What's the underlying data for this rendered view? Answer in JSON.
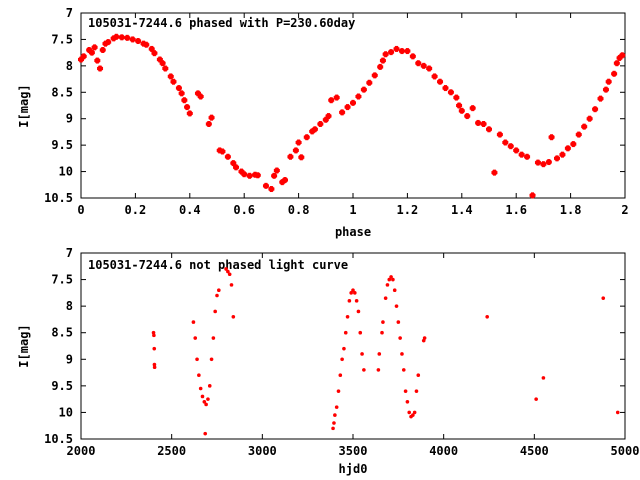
{
  "chart_data": [
    {
      "type": "scatter",
      "title": "105031-7244.6 phased with P=230.60day",
      "xlabel": "phase",
      "ylabel": "I[mag]",
      "xlim": [
        0,
        2
      ],
      "ylim": [
        10.5,
        7
      ],
      "y_inverted": true,
      "xticks": [
        "0",
        "0.2",
        "0.4",
        "0.6",
        "0.8",
        "1",
        "1.2",
        "1.4",
        "1.6",
        "1.8",
        "2"
      ],
      "yticks": [
        "7",
        "7.5",
        "8",
        "8.5",
        "9",
        "9.5",
        "10",
        "10.5"
      ],
      "grid": false,
      "marker": "cross",
      "color": "#ff0000",
      "series": [
        {
          "points": [
            [
              0.0,
              7.88
            ],
            [
              0.01,
              7.82
            ],
            [
              0.03,
              7.7
            ],
            [
              0.04,
              7.75
            ],
            [
              0.05,
              7.65
            ],
            [
              0.06,
              7.9
            ],
            [
              0.07,
              8.05
            ],
            [
              0.08,
              7.7
            ],
            [
              0.09,
              7.58
            ],
            [
              0.1,
              7.55
            ],
            [
              0.12,
              7.48
            ],
            [
              0.13,
              7.45
            ],
            [
              0.15,
              7.46
            ],
            [
              0.17,
              7.47
            ],
            [
              0.19,
              7.5
            ],
            [
              0.21,
              7.53
            ],
            [
              0.23,
              7.58
            ],
            [
              0.24,
              7.6
            ],
            [
              0.26,
              7.68
            ],
            [
              0.27,
              7.76
            ],
            [
              0.29,
              7.88
            ],
            [
              0.3,
              7.95
            ],
            [
              0.31,
              8.05
            ],
            [
              0.33,
              8.2
            ],
            [
              0.34,
              8.3
            ],
            [
              0.36,
              8.42
            ],
            [
              0.37,
              8.52
            ],
            [
              0.38,
              8.65
            ],
            [
              0.39,
              8.78
            ],
            [
              0.4,
              8.9
            ],
            [
              0.43,
              8.52
            ],
            [
              0.44,
              8.58
            ],
            [
              0.47,
              9.1
            ],
            [
              0.48,
              8.98
            ],
            [
              0.51,
              9.6
            ],
            [
              0.52,
              9.62
            ],
            [
              0.54,
              9.72
            ],
            [
              0.56,
              9.84
            ],
            [
              0.57,
              9.92
            ],
            [
              0.59,
              10.0
            ],
            [
              0.6,
              10.05
            ],
            [
              0.62,
              10.08
            ],
            [
              0.64,
              10.06
            ],
            [
              0.65,
              10.07
            ],
            [
              0.68,
              10.27
            ],
            [
              0.7,
              10.33
            ],
            [
              0.71,
              10.08
            ],
            [
              0.72,
              9.98
            ],
            [
              0.74,
              10.2
            ],
            [
              0.75,
              10.16
            ],
            [
              0.77,
              9.72
            ],
            [
              0.79,
              9.6
            ],
            [
              0.8,
              9.45
            ],
            [
              0.81,
              9.73
            ],
            [
              0.83,
              9.35
            ],
            [
              0.85,
              9.24
            ],
            [
              0.86,
              9.2
            ],
            [
              0.88,
              9.1
            ],
            [
              0.9,
              9.02
            ],
            [
              0.91,
              8.95
            ],
            [
              0.92,
              8.65
            ],
            [
              0.94,
              8.6
            ],
            [
              0.96,
              8.88
            ],
            [
              0.98,
              8.78
            ],
            [
              1.0,
              8.7
            ],
            [
              1.02,
              8.58
            ],
            [
              1.04,
              8.45
            ],
            [
              1.06,
              8.32
            ],
            [
              1.08,
              8.18
            ],
            [
              1.1,
              8.02
            ],
            [
              1.11,
              7.9
            ],
            [
              1.12,
              7.78
            ],
            [
              1.14,
              7.74
            ],
            [
              1.16,
              7.68
            ],
            [
              1.18,
              7.72
            ],
            [
              1.2,
              7.72
            ],
            [
              1.22,
              7.82
            ],
            [
              1.24,
              7.95
            ],
            [
              1.26,
              8.0
            ],
            [
              1.28,
              8.05
            ],
            [
              1.3,
              8.2
            ],
            [
              1.32,
              8.3
            ],
            [
              1.34,
              8.42
            ],
            [
              1.36,
              8.5
            ],
            [
              1.38,
              8.6
            ],
            [
              1.39,
              8.75
            ],
            [
              1.4,
              8.85
            ],
            [
              1.42,
              8.95
            ],
            [
              1.44,
              8.8
            ],
            [
              1.46,
              9.08
            ],
            [
              1.48,
              9.1
            ],
            [
              1.5,
              9.2
            ],
            [
              1.52,
              10.02
            ],
            [
              1.54,
              9.3
            ],
            [
              1.56,
              9.45
            ],
            [
              1.58,
              9.52
            ],
            [
              1.6,
              9.6
            ],
            [
              1.62,
              9.68
            ],
            [
              1.64,
              9.72
            ],
            [
              1.66,
              10.45
            ],
            [
              1.68,
              9.83
            ],
            [
              1.7,
              9.86
            ],
            [
              1.72,
              9.82
            ],
            [
              1.73,
              9.35
            ],
            [
              1.75,
              9.75
            ],
            [
              1.77,
              9.68
            ],
            [
              1.79,
              9.56
            ],
            [
              1.81,
              9.48
            ],
            [
              1.83,
              9.3
            ],
            [
              1.85,
              9.15
            ],
            [
              1.87,
              9.0
            ],
            [
              1.89,
              8.82
            ],
            [
              1.91,
              8.62
            ],
            [
              1.93,
              8.45
            ],
            [
              1.94,
              8.3
            ],
            [
              1.96,
              8.15
            ],
            [
              1.97,
              7.95
            ],
            [
              1.98,
              7.85
            ],
            [
              1.99,
              7.8
            ]
          ]
        }
      ]
    },
    {
      "type": "scatter",
      "title": "105031-7244.6 not phased light curve",
      "xlabel": "hjd0",
      "ylabel": "I[mag]",
      "xlim": [
        2000,
        5000
      ],
      "ylim": [
        10.5,
        7
      ],
      "y_inverted": true,
      "xticks": [
        "2000",
        "2500",
        "3000",
        "3500",
        "4000",
        "4500",
        "5000"
      ],
      "yticks": [
        "7",
        "7.5",
        "8",
        "8.5",
        "9",
        "9.5",
        "10",
        "10.5"
      ],
      "grid": false,
      "marker": "dot",
      "color": "#ff0000",
      "series": [
        {
          "points": [
            [
              2400,
              8.5
            ],
            [
              2402,
              8.55
            ],
            [
              2404,
              8.8
            ],
            [
              2405,
              9.1
            ],
            [
              2406,
              9.15
            ],
            [
              2620,
              8.3
            ],
            [
              2630,
              8.6
            ],
            [
              2640,
              9.0
            ],
            [
              2650,
              9.3
            ],
            [
              2660,
              9.55
            ],
            [
              2670,
              9.7
            ],
            [
              2680,
              9.8
            ],
            [
              2690,
              9.85
            ],
            [
              2700,
              9.75
            ],
            [
              2710,
              9.5
            ],
            [
              2720,
              9.0
            ],
            [
              2730,
              8.6
            ],
            [
              2740,
              8.1
            ],
            [
              2750,
              7.8
            ],
            [
              2760,
              7.7
            ],
            [
              2685,
              10.4
            ],
            [
              2800,
              7.3
            ],
            [
              2810,
              7.35
            ],
            [
              2820,
              7.4
            ],
            [
              2830,
              7.6
            ],
            [
              2840,
              8.2
            ],
            [
              3390,
              10.3
            ],
            [
              3395,
              10.2
            ],
            [
              3400,
              10.05
            ],
            [
              3410,
              9.9
            ],
            [
              3420,
              9.6
            ],
            [
              3430,
              9.3
            ],
            [
              3440,
              9.0
            ],
            [
              3450,
              8.8
            ],
            [
              3460,
              8.5
            ],
            [
              3470,
              8.2
            ],
            [
              3480,
              7.9
            ],
            [
              3490,
              7.75
            ],
            [
              3500,
              7.7
            ],
            [
              3510,
              7.75
            ],
            [
              3520,
              7.9
            ],
            [
              3530,
              8.1
            ],
            [
              3540,
              8.5
            ],
            [
              3550,
              8.9
            ],
            [
              3560,
              9.2
            ],
            [
              3640,
              9.2
            ],
            [
              3645,
              8.9
            ],
            [
              3660,
              8.5
            ],
            [
              3665,
              8.3
            ],
            [
              3680,
              7.85
            ],
            [
              3690,
              7.6
            ],
            [
              3700,
              7.5
            ],
            [
              3710,
              7.45
            ],
            [
              3720,
              7.5
            ],
            [
              3730,
              7.7
            ],
            [
              3740,
              8.0
            ],
            [
              3750,
              8.3
            ],
            [
              3760,
              8.6
            ],
            [
              3770,
              8.9
            ],
            [
              3780,
              9.2
            ],
            [
              3790,
              9.6
            ],
            [
              3800,
              9.8
            ],
            [
              3810,
              10.0
            ],
            [
              3820,
              10.08
            ],
            [
              3830,
              10.05
            ],
            [
              3840,
              10.0
            ],
            [
              3850,
              9.6
            ],
            [
              3860,
              9.3
            ],
            [
              3890,
              8.65
            ],
            [
              3895,
              8.6
            ],
            [
              4240,
              8.2
            ],
            [
              4510,
              9.75
            ],
            [
              4550,
              9.35
            ],
            [
              4880,
              7.85
            ],
            [
              4960,
              10.0
            ]
          ]
        }
      ]
    }
  ]
}
